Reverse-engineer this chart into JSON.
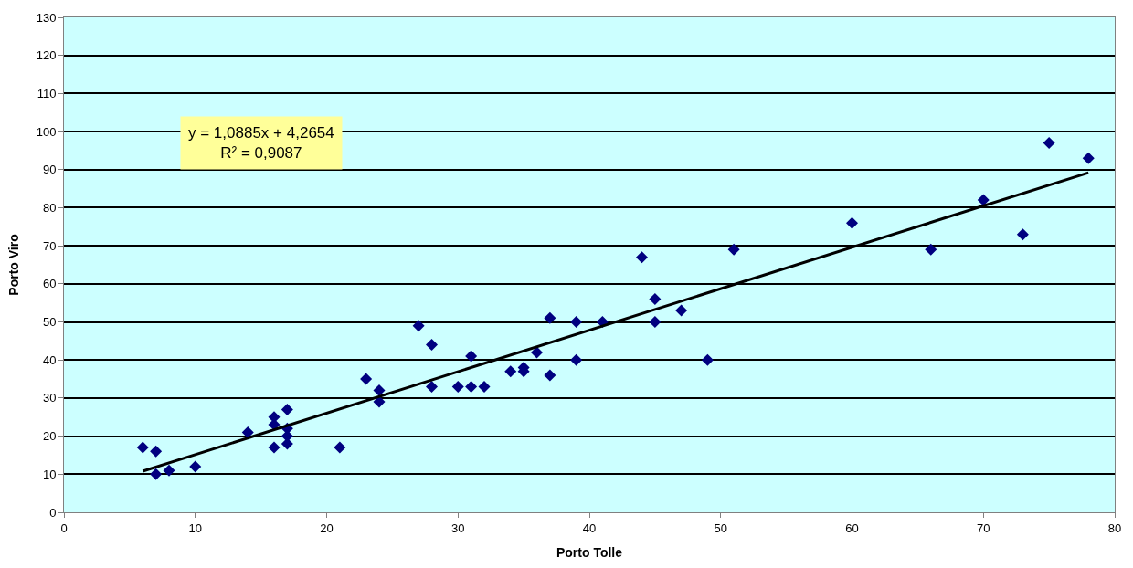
{
  "chart_data": {
    "type": "scatter",
    "xlabel": "Porto Tolle",
    "ylabel": "Porto Viro",
    "annotations": [
      "y = 1,0885x + 4,2654\nR² = 0,9087"
    ],
    "series": [
      {
        "color": "#000080",
        "marker": "diamond",
        "x": [
          6,
          7,
          7,
          8,
          10,
          14,
          16,
          16,
          16,
          17,
          17,
          17,
          17,
          21,
          23,
          24,
          24,
          27,
          28,
          28,
          30,
          31,
          31,
          32,
          34,
          35,
          35,
          36,
          37,
          37,
          39,
          39,
          41,
          44,
          45,
          45,
          47,
          49,
          51,
          60,
          66,
          70,
          73,
          75,
          78
        ],
        "values": [
          17,
          16,
          10,
          11,
          12,
          21,
          17,
          23,
          25,
          27,
          22,
          20,
          18,
          17,
          35,
          32,
          29,
          49,
          44,
          33,
          33,
          41,
          33,
          33,
          37,
          38,
          37,
          42,
          51,
          36,
          50,
          40,
          50,
          67,
          56,
          50,
          53,
          40,
          69,
          76,
          69,
          82,
          73,
          97,
          93
        ]
      },
      {
        "type": "line",
        "color": "#000000",
        "marker": "none",
        "line_style": "solid",
        "x": [
          6,
          78
        ],
        "values": [
          10.8,
          89.2
        ]
      }
    ],
    "xlim": [
      0,
      80
    ],
    "xticks": [
      0,
      10,
      20,
      30,
      40,
      50,
      60,
      70,
      80
    ],
    "ylim": [
      0,
      130
    ],
    "yticks": [
      0,
      10,
      20,
      30,
      40,
      50,
      60,
      70,
      80,
      90,
      100,
      110,
      120,
      130
    ],
    "grid": "y"
  }
}
